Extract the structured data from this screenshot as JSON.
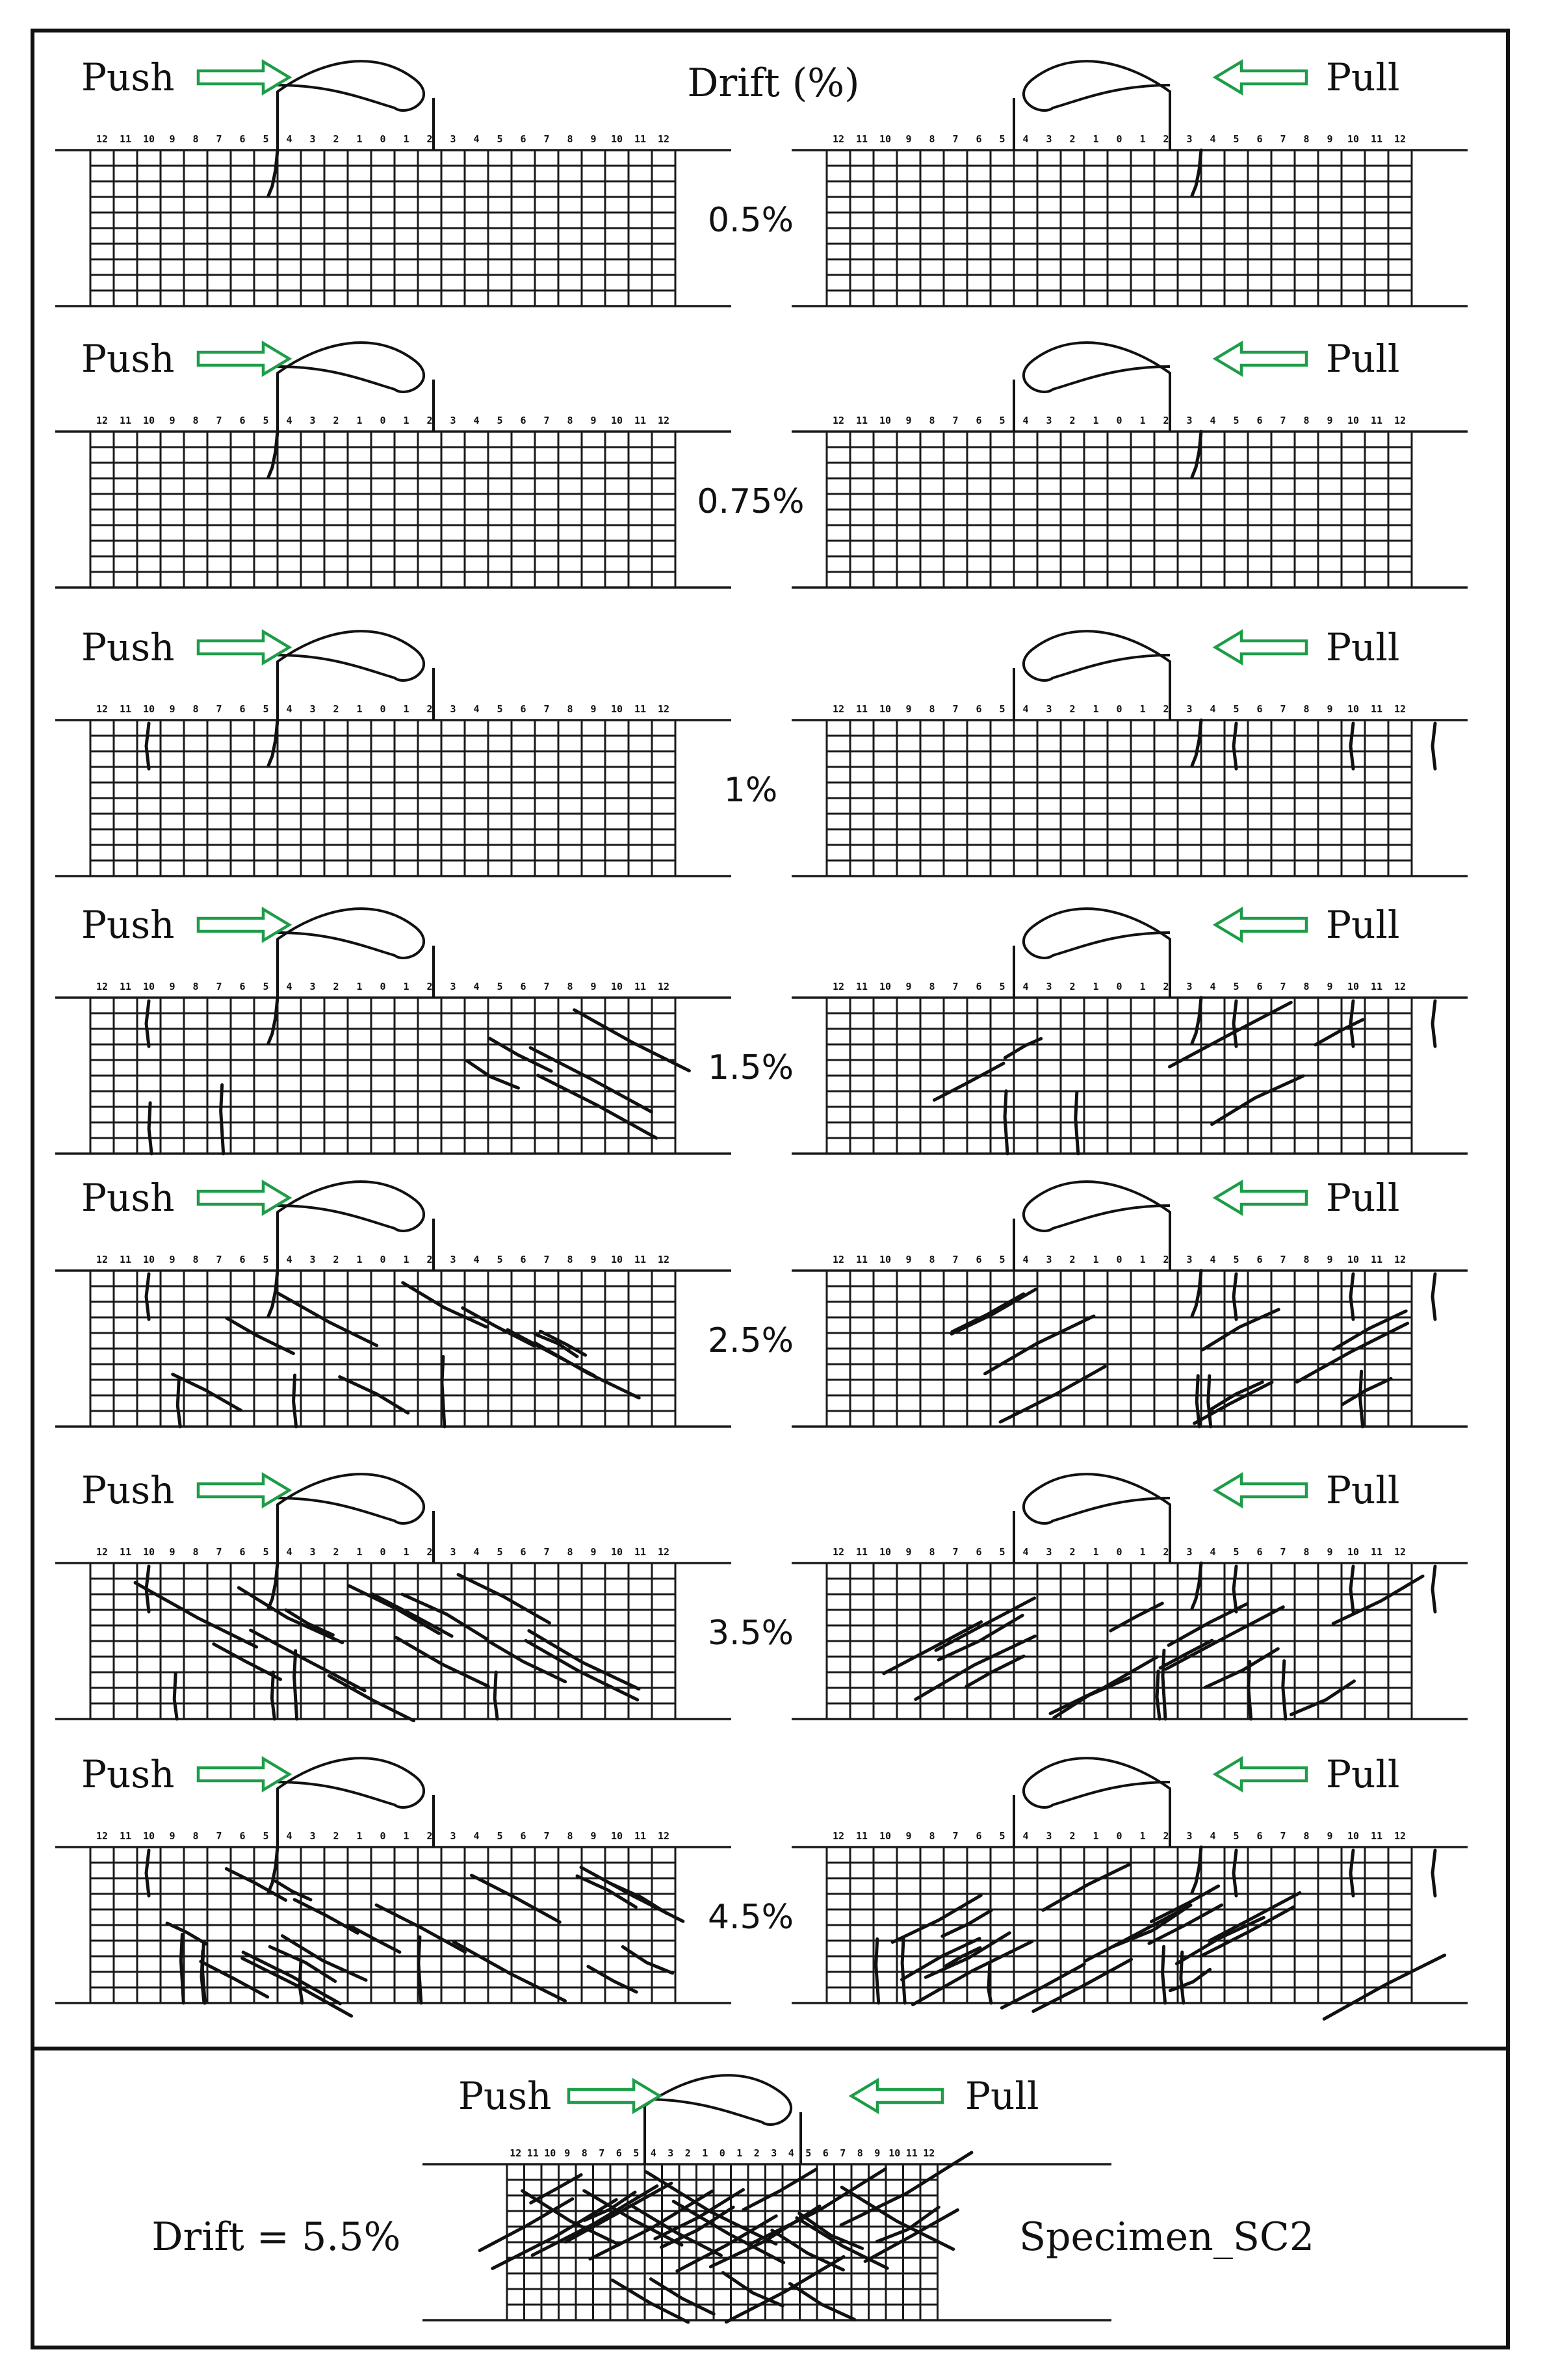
{
  "header": {
    "drift_label": "Drift (%)"
  },
  "load_labels": {
    "push": "Push",
    "pull": "Pull"
  },
  "scale_labels": [
    "12",
    "11",
    "10",
    "9",
    "8",
    "7",
    "6",
    "5",
    "4",
    "3",
    "2",
    "1",
    "0",
    "1",
    "2",
    "3",
    "4",
    "5",
    "6",
    "7",
    "8",
    "9",
    "10",
    "11",
    "12"
  ],
  "drift_levels": [
    {
      "label": "0.5%"
    },
    {
      "label": "0.75%"
    },
    {
      "label": "1%"
    },
    {
      "label": "1.5%"
    },
    {
      "label": "2.5%"
    },
    {
      "label": "3.5%"
    },
    {
      "label": "4.5%"
    }
  ],
  "footer": {
    "push_label": "Push",
    "pull_label": "Pull",
    "drift_text": "Drift = 5.5%",
    "specimen_text": "Specimen_SC2"
  },
  "colors": {
    "arrow": "#1e9c48",
    "line": "#111111"
  }
}
